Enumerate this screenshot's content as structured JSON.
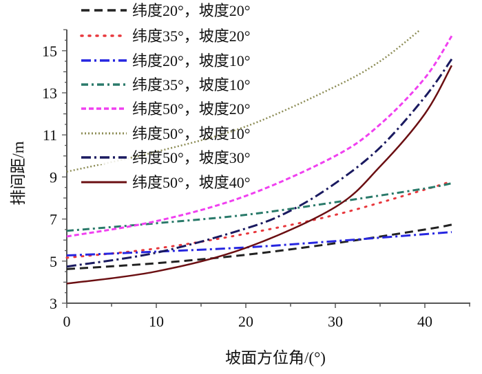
{
  "chart_data": {
    "type": "line",
    "title": "",
    "xlabel": "坡面方位角/(°)",
    "ylabel": "排间距/m",
    "xlim": [
      0,
      45
    ],
    "ylim": [
      3,
      16
    ],
    "xticks": [
      0,
      10,
      20,
      30,
      40
    ],
    "yticks": [
      3,
      5,
      7,
      9,
      11,
      13,
      15
    ],
    "grid": false,
    "legend_position": "top-left",
    "series": [
      {
        "name": "纬度20°，坡度20°",
        "color": "#222222",
        "style": "dashed",
        "x": [
          0,
          10,
          20,
          30,
          40,
          43
        ],
        "y": [
          4.62,
          4.9,
          5.3,
          5.85,
          6.5,
          6.73
        ]
      },
      {
        "name": "纬度35°，坡度20°",
        "color": "#e8383d",
        "style": "dotted",
        "x": [
          0,
          10,
          20,
          30,
          40,
          43
        ],
        "y": [
          5.16,
          5.6,
          6.3,
          7.2,
          8.4,
          8.8
        ]
      },
      {
        "name": "纬度20°，坡度10°",
        "color": "#2626e0",
        "style": "dash-dot",
        "x": [
          0,
          10,
          20,
          30,
          40,
          43
        ],
        "y": [
          5.27,
          5.45,
          5.65,
          5.95,
          6.28,
          6.38
        ]
      },
      {
        "name": "纬度35°，坡度10°",
        "color": "#2a7a6a",
        "style": "dash-dot-dot",
        "x": [
          0,
          10,
          20,
          30,
          40,
          43
        ],
        "y": [
          6.44,
          6.8,
          7.2,
          7.8,
          8.45,
          8.7
        ]
      },
      {
        "name": "纬度50°，坡度20°",
        "color": "#f040f0",
        "style": "short-dash",
        "x": [
          0,
          10,
          20,
          30,
          35,
          40,
          43
        ],
        "y": [
          6.17,
          6.9,
          8.1,
          10.0,
          11.5,
          13.7,
          15.7
        ]
      },
      {
        "name": "纬度50°，坡度10°",
        "color": "#8c8c55",
        "style": "fine-dotted",
        "x": [
          0,
          10,
          20,
          30,
          35,
          39.5
        ],
        "y": [
          9.25,
          10.2,
          11.4,
          13.3,
          14.5,
          16.0
        ]
      },
      {
        "name": "纬度50°，坡度30°",
        "color": "#1a1a60",
        "style": "dash-dot",
        "x": [
          0,
          10,
          20,
          25,
          30,
          35,
          40,
          43
        ],
        "y": [
          4.74,
          5.4,
          6.55,
          7.4,
          8.7,
          10.4,
          12.8,
          14.6
        ]
      },
      {
        "name": "纬度50°，坡度40°",
        "color": "#6b0f12",
        "style": "solid",
        "x": [
          0,
          10,
          20,
          30,
          35,
          40,
          43
        ],
        "y": [
          3.93,
          4.51,
          5.63,
          7.57,
          9.5,
          12.0,
          14.3
        ]
      }
    ]
  }
}
